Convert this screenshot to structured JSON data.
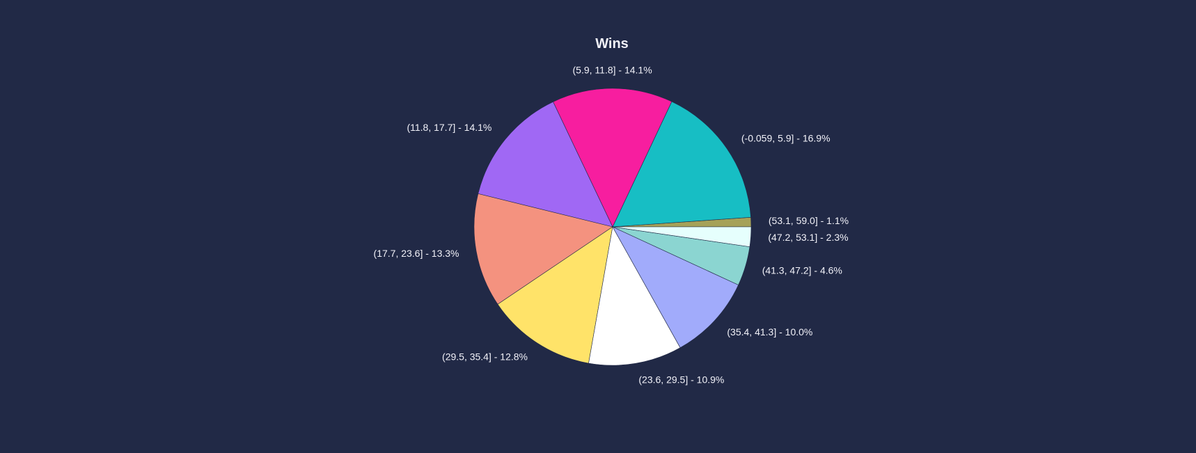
{
  "chart_data": {
    "type": "pie",
    "title": "Wins",
    "start_angle_deg": 0,
    "direction": "counterclockwise",
    "slices": [
      {
        "label": "(53.1, 59.0]",
        "display": "(53.1, 59.0] - 1.1%",
        "value": 1.1,
        "color": "#A6A158"
      },
      {
        "label": "(-0.059, 5.9]",
        "display": "(-0.059, 5.9] - 16.9%",
        "value": 16.9,
        "color": "#17BEC4"
      },
      {
        "label": "(5.9, 11.8]",
        "display": "(5.9, 11.8] - 14.1%",
        "value": 14.1,
        "color": "#F71E9F"
      },
      {
        "label": "(11.8, 17.7]",
        "display": "(11.8, 17.7] - 14.1%",
        "value": 14.1,
        "color": "#A068F4"
      },
      {
        "label": "(17.7, 23.6]",
        "display": "(17.7, 23.6] - 13.3%",
        "value": 13.3,
        "color": "#F4927F"
      },
      {
        "label": "(29.5, 35.4]",
        "display": "(29.5, 35.4] - 12.8%",
        "value": 12.8,
        "color": "#FFE369"
      },
      {
        "label": "(23.6, 29.5]",
        "display": "(23.6, 29.5] - 10.9%",
        "value": 10.9,
        "color": "#FFFFFF"
      },
      {
        "label": "(35.4, 41.3]",
        "display": "(35.4, 41.3] - 10.0%",
        "value": 10.0,
        "color": "#A1ABFB"
      },
      {
        "label": "(41.3, 47.2]",
        "display": "(41.3, 47.2] - 4.6%",
        "value": 4.6,
        "color": "#8BD5D1"
      },
      {
        "label": "(47.2, 53.1]",
        "display": "(47.2, 53.1] - 2.3%",
        "value": 2.3,
        "color": "#E6FFFD"
      }
    ],
    "colors": {
      "background": "#212946",
      "text": "#F1F1F8"
    }
  }
}
